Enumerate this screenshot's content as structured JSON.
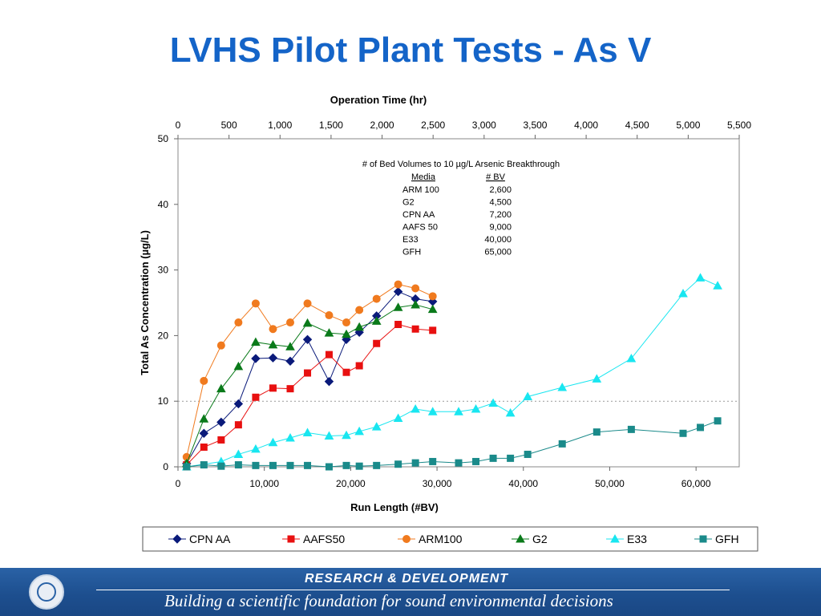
{
  "slide": {
    "title": "LVHS Pilot Plant Tests - As V"
  },
  "chart_data": {
    "type": "line",
    "title": "",
    "xlabel": "Run Length (#BV)",
    "x2label": "Operation Time (hr)",
    "ylabel": "Total As Concentration (µg/L)",
    "xlim": [
      0,
      65000
    ],
    "x2lim": [
      0,
      5500
    ],
    "ylim": [
      0,
      50
    ],
    "x_ticks": [
      "0",
      "10,000",
      "20,000",
      "30,000",
      "40,000",
      "50,000",
      "60,000"
    ],
    "x2_ticks": [
      "0",
      "500",
      "1,000",
      "1,500",
      "2,000",
      "2,500",
      "3,000",
      "3,500",
      "4,000",
      "4,500",
      "5,000",
      "5,500"
    ],
    "y_ticks": [
      "0",
      "10",
      "20",
      "30",
      "40",
      "50"
    ],
    "reference_line_y": 10,
    "legend_position": "bottom",
    "series": [
      {
        "name": "CPN AA",
        "color": "#0a1a7a",
        "marker": "diamond",
        "x": [
          1000,
          3000,
          5000,
          7000,
          9000,
          11000,
          13000,
          15000,
          17500,
          19500,
          21000,
          23000,
          25500,
          27500,
          29500
        ],
        "y": [
          0.5,
          5.1,
          6.8,
          9.6,
          16.5,
          16.6,
          16.1,
          19.4,
          13.0,
          19.4,
          20.5,
          23.0,
          26.7,
          25.6,
          25.2
        ]
      },
      {
        "name": "AAFS50",
        "color": "#e81010",
        "marker": "square",
        "x": [
          1000,
          3000,
          5000,
          7000,
          9000,
          11000,
          13000,
          15000,
          17500,
          19500,
          21000,
          23000,
          25500,
          27500,
          29500
        ],
        "y": [
          0.3,
          3.0,
          4.1,
          6.4,
          10.6,
          12.0,
          11.9,
          14.3,
          17.1,
          14.4,
          15.4,
          18.8,
          21.7,
          21.0,
          20.8
        ]
      },
      {
        "name": "ARM100",
        "color": "#f07a1e",
        "marker": "circle",
        "x": [
          1000,
          3000,
          5000,
          7000,
          9000,
          11000,
          13000,
          15000,
          17500,
          19500,
          21000,
          23000,
          25500,
          27500,
          29500
        ],
        "y": [
          1.5,
          13.1,
          18.5,
          22.0,
          24.9,
          21.0,
          22.0,
          24.9,
          23.1,
          22.0,
          23.9,
          25.6,
          27.8,
          27.2,
          26.0
        ]
      },
      {
        "name": "G2",
        "color": "#0a7a1a",
        "marker": "triangle",
        "x": [
          1000,
          3000,
          5000,
          7000,
          9000,
          11000,
          13000,
          15000,
          17500,
          19500,
          21000,
          23000,
          25500,
          27500,
          29500
        ],
        "y": [
          0.5,
          7.3,
          11.9,
          15.3,
          19.0,
          18.6,
          18.3,
          21.9,
          20.4,
          20.2,
          21.3,
          22.2,
          24.3,
          24.7,
          24.0
        ]
      },
      {
        "name": "E33",
        "color": "#19e6f0",
        "marker": "triangle",
        "x": [
          1000,
          5000,
          7000,
          9000,
          11000,
          13000,
          15000,
          17500,
          19500,
          21000,
          23000,
          25500,
          27500,
          29500,
          32500,
          34500,
          36500,
          38500,
          40500,
          44500,
          48500,
          52500,
          58500,
          60500,
          62500
        ],
        "y": [
          0.0,
          0.8,
          1.9,
          2.7,
          3.7,
          4.4,
          5.2,
          4.7,
          4.8,
          5.4,
          6.1,
          7.4,
          8.8,
          8.4,
          8.4,
          8.8,
          9.7,
          8.2,
          10.7,
          12.1,
          13.4,
          16.5,
          26.4,
          28.8,
          27.6
        ]
      },
      {
        "name": "GFH",
        "color": "#1a8a8a",
        "marker": "square",
        "x": [
          1000,
          3000,
          5000,
          7000,
          9000,
          11000,
          13000,
          15000,
          17500,
          19500,
          21000,
          23000,
          25500,
          27500,
          29500,
          32500,
          34500,
          36500,
          38500,
          40500,
          44500,
          48500,
          52500,
          58500,
          60500,
          62500
        ],
        "y": [
          0.0,
          0.3,
          0.1,
          0.3,
          0.2,
          0.2,
          0.2,
          0.2,
          0.0,
          0.2,
          0.1,
          0.2,
          0.4,
          0.6,
          0.8,
          0.6,
          0.8,
          1.3,
          1.3,
          1.9,
          3.5,
          5.3,
          5.7,
          5.1,
          6.0,
          7.0
        ]
      }
    ],
    "annotation": {
      "heading": "# of Bed Volumes to 10 µg/L Arsenic Breakthrough",
      "col_headers": [
        "Media",
        "# BV"
      ],
      "rows": [
        [
          "ARM 100",
          "2,600"
        ],
        [
          "G2",
          "4,500"
        ],
        [
          "CPN AA",
          "7,200"
        ],
        [
          "AAFS 50",
          "9,000"
        ],
        [
          "E33",
          "40,000"
        ],
        [
          "GFH",
          "65,000"
        ]
      ]
    }
  },
  "footer": {
    "heading": "RESEARCH &  DEVELOPMENT",
    "tagline": "Building a scientific foundation for sound environmental decisions"
  }
}
